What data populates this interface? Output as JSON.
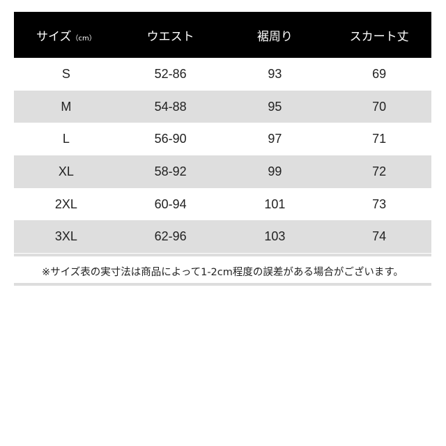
{
  "header": {
    "size": "サイズ",
    "unit": "（cm）",
    "waist": "ウエスト",
    "hem": "裾周り",
    "length": "スカート丈"
  },
  "rows": [
    {
      "size": "S",
      "waist": "52-86",
      "hem": "93",
      "length": "69"
    },
    {
      "size": "M",
      "waist": "54-88",
      "hem": "95",
      "length": "70"
    },
    {
      "size": "L",
      "waist": "56-90",
      "hem": "97",
      "length": "71"
    },
    {
      "size": "XL",
      "waist": "58-92",
      "hem": "99",
      "length": "72"
    },
    {
      "size": "2XL",
      "waist": "60-94",
      "hem": "101",
      "length": "73"
    },
    {
      "size": "3XL",
      "waist": "62-96",
      "hem": "103",
      "length": "74"
    }
  ],
  "note": "※サイズ表の実寸法は商品によって1-2cm程度の誤差がある場合がございます。"
}
